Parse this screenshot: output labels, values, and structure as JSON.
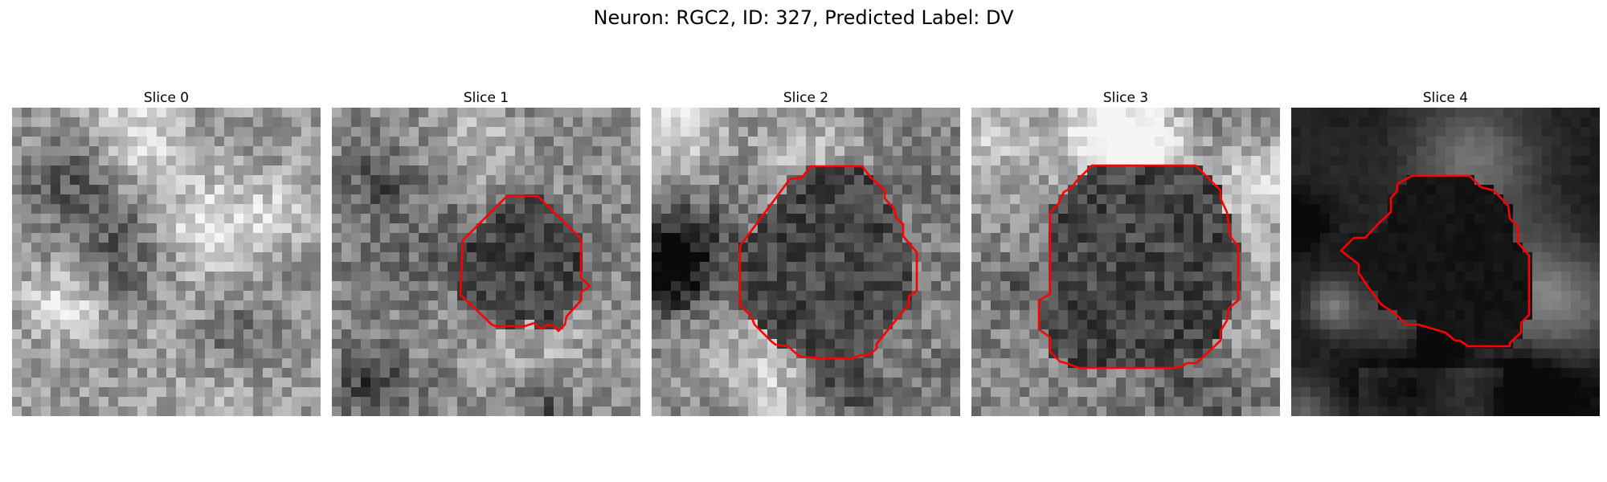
{
  "figure": {
    "suptitle": "Neuron: RGC2, ID: 327, Predicted Label: DV",
    "contour_color": "#ff0000"
  },
  "slices": [
    {
      "title": "Slice 0",
      "has_contour": false,
      "mean_brightness": 0.6
    },
    {
      "title": "Slice 1",
      "has_contour": true,
      "mean_brightness": 0.55
    },
    {
      "title": "Slice 2",
      "has_contour": true,
      "mean_brightness": 0.5
    },
    {
      "title": "Slice 3",
      "has_contour": true,
      "mean_brightness": 0.52
    },
    {
      "title": "Slice 4",
      "has_contour": true,
      "mean_brightness": 0.08
    }
  ]
}
